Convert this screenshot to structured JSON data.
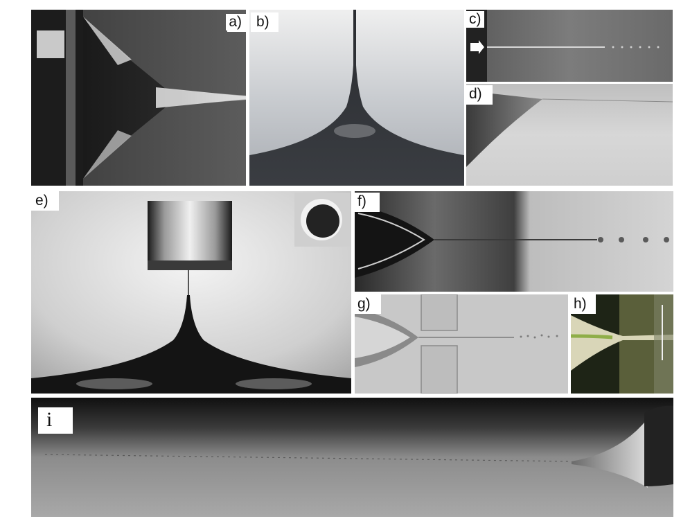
{
  "panels": {
    "a": {
      "label": "a)"
    },
    "b": {
      "label": "b)"
    },
    "c": {
      "label": "c)"
    },
    "d": {
      "label": "d)"
    },
    "e": {
      "label": "e)"
    },
    "f": {
      "label": "f)"
    },
    "g": {
      "label": "g)"
    },
    "h": {
      "label": "h)"
    },
    "i": {
      "label": "i"
    }
  }
}
